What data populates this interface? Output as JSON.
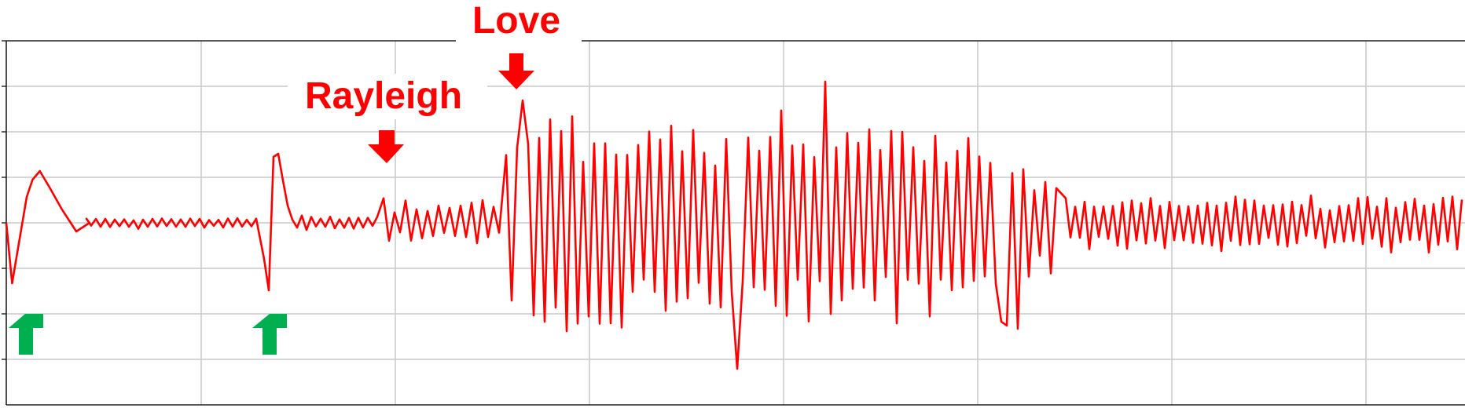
{
  "chart_data": {
    "type": "line",
    "title": "",
    "xlabel": "",
    "ylabel": "",
    "xlim": [
      0,
      1
    ],
    "ylim": [
      -1,
      1
    ],
    "grid": true,
    "legend": "none",
    "series_color": "#ff0000",
    "arrow_colors": {
      "red": "#ff0000",
      "green": "#00b050"
    },
    "series": [
      {
        "type": "seismogram-trace",
        "x": [
          0.0,
          0.004,
          0.009,
          0.014,
          0.018,
          0.023,
          0.03,
          0.038,
          0.048,
          0.057
        ],
        "y": [
          0.0,
          -0.35,
          -0.1,
          0.15,
          0.25,
          0.3,
          0.2,
          0.08,
          -0.05,
          0.0
        ]
      }
    ],
    "annotations": [
      {
        "text": "Love",
        "color": "#ff0000",
        "kind": "red-arrow-down"
      },
      {
        "text": "Rayleigh",
        "color": "#ff0000",
        "kind": "red-arrow-down"
      },
      {
        "text": "",
        "color": "#00b050",
        "kind": "green-arrow-up"
      },
      {
        "text": "",
        "color": "#00b050",
        "kind": "green-arrow-up"
      }
    ]
  }
}
